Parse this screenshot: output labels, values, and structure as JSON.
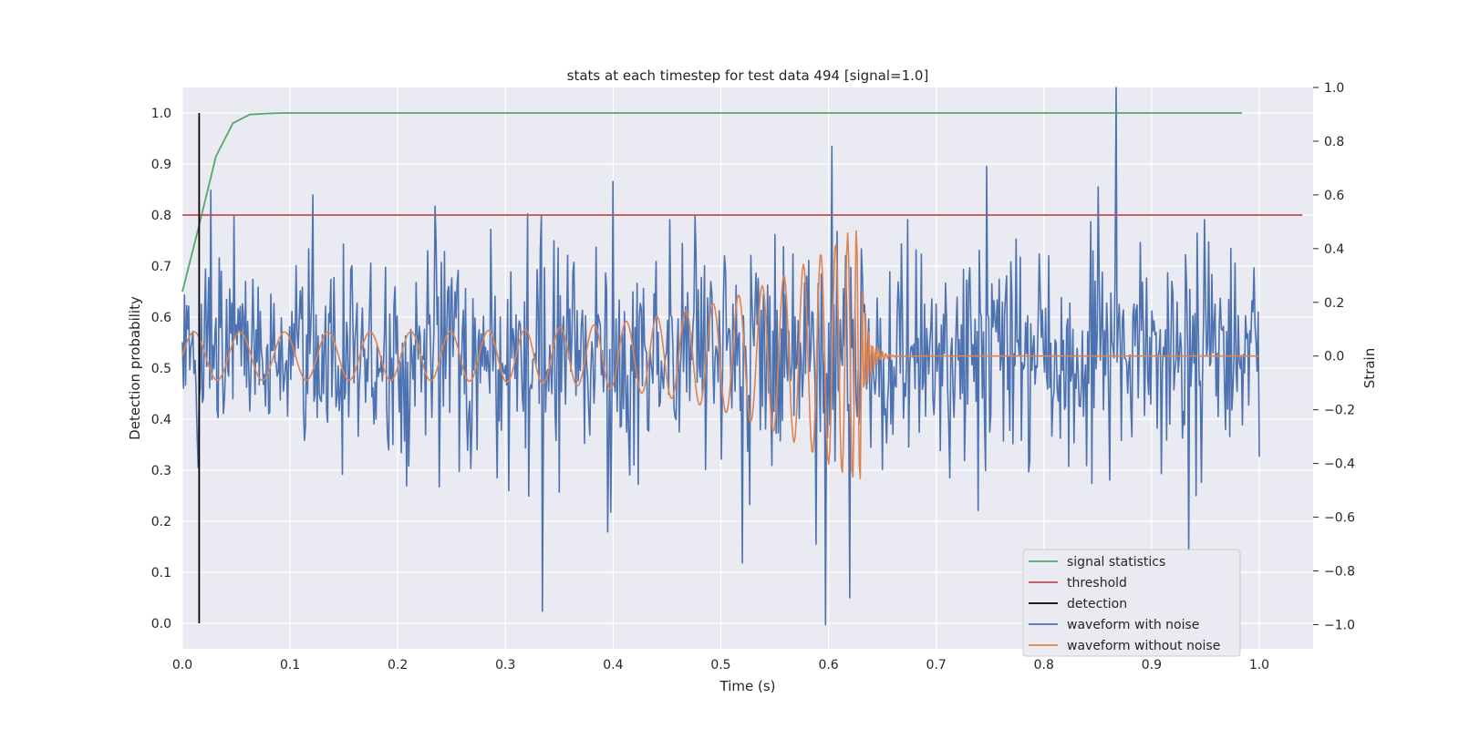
{
  "chart_data": {
    "type": "line",
    "title": "stats at each timestep for test data 494 [signal=1.0]",
    "xlabel": "Time (s)",
    "ylabel": "Detection probability",
    "y2label": "Strain",
    "xlim": [
      0.0,
      1.05
    ],
    "ylim": [
      -0.05,
      1.05
    ],
    "y2lim": [
      -1.09,
      1.0
    ],
    "xticks": [
      "0.0",
      "0.1",
      "0.2",
      "0.3",
      "0.4",
      "0.5",
      "0.6",
      "0.7",
      "0.8",
      "0.9",
      "1.0"
    ],
    "yticks": [
      "0.0",
      "0.1",
      "0.2",
      "0.3",
      "0.4",
      "0.5",
      "0.6",
      "0.7",
      "0.8",
      "0.9",
      "1.0"
    ],
    "y2ticks": [
      "−1.0",
      "−0.8",
      "−0.6",
      "−0.4",
      "−0.2",
      "0.0",
      "0.2",
      "0.4",
      "0.6",
      "0.8",
      "1.0"
    ],
    "grid": true,
    "legend_position": "lower-right",
    "series": [
      {
        "name": "signal statistics",
        "color": "#55a868",
        "axis": "left",
        "x": [
          0.0,
          0.0156,
          0.0312,
          0.0469,
          0.0625,
          0.0781,
          0.0938,
          0.125,
          0.2,
          0.3,
          0.4,
          0.5,
          0.6,
          0.7,
          0.8,
          0.9,
          0.984
        ],
        "y": [
          0.65,
          0.78,
          0.915,
          0.98,
          0.997,
          0.999,
          1.0,
          1.0,
          1.0,
          1.0,
          1.0,
          1.0,
          1.0,
          1.0,
          1.0,
          1.0,
          1.0
        ]
      },
      {
        "name": "threshold",
        "color": "#c44e52",
        "axis": "left",
        "x": [
          0.0,
          1.04
        ],
        "y": [
          0.8,
          0.8
        ]
      },
      {
        "name": "detection",
        "color": "#000000",
        "axis": "left",
        "x": [
          0.0156,
          0.0156
        ],
        "y": [
          0.0,
          1.0
        ]
      },
      {
        "name": "waveform with noise",
        "color": "#4c72b0",
        "axis": "right",
        "generated": "noise",
        "n": 1024,
        "amplitude": 0.2,
        "spikes": [
          [
            0.334,
            -0.95
          ],
          [
            0.597,
            -1.0
          ],
          [
            0.603,
            0.78
          ],
          [
            0.867,
            1.0
          ],
          [
            0.588,
            -0.7
          ],
          [
            0.4,
            0.65
          ],
          [
            0.121,
            0.6
          ],
          [
            0.62,
            -0.9
          ],
          [
            0.85,
            0.63
          ]
        ]
      },
      {
        "name": "waveform without noise",
        "color": "#dd8452",
        "axis": "right",
        "generated": "chirp",
        "n": 1024,
        "merger_time": 0.63,
        "start_amplitude": 0.09,
        "peak_amplitude": 0.5
      }
    ]
  }
}
